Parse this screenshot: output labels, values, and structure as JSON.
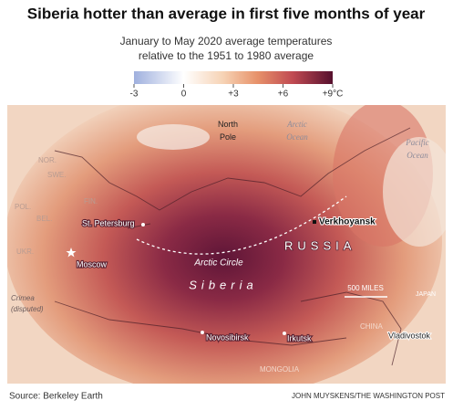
{
  "title": "Siberia hotter than average in first five months of year",
  "subtitle": [
    "January to May 2020 average temperatures",
    "relative to the 1951 to 1980 average"
  ],
  "color_scale": {
    "range": [
      -3,
      9
    ],
    "ticks": [
      -3,
      0,
      {
        "value": 3,
        "label": "+3"
      },
      {
        "value": 6,
        "label": "+6"
      },
      {
        "value": 9,
        "label": "+9°C"
      }
    ]
  },
  "map": {
    "labels": {
      "north_pole": [
        "North",
        "Pole"
      ],
      "arctic_ocean": [
        "Arctic",
        "Ocean"
      ],
      "pacific_ocean": [
        "Pacific",
        "Ocean"
      ],
      "nor": "NOR.",
      "swe": "SWE.",
      "fin": "FIN.",
      "pol": "POL.",
      "bel": "BEL.",
      "ukr": "UKR.",
      "st_petersburg": "St. Petersburg",
      "moscow": "Moscow",
      "verkhoyansk": "Verkhoyansk",
      "russia": "RUSSIA",
      "arctic_circle": "Arctic Circle",
      "siberia": "Siberia",
      "scale": "500 MILES",
      "japan": "JAPAN",
      "crimea": [
        "Crimea",
        "(disputed)"
      ],
      "china": "CHINA",
      "vladivostok": "Vladivostok",
      "novosibirsk": "Novosibirsk",
      "irkutsk": "Irkutsk",
      "mongolia": "MONGOLIA"
    }
  },
  "source": "Source: Berkeley Earth",
  "credit": "JOHN MUYSKENS/THE WASHINGTON POST"
}
